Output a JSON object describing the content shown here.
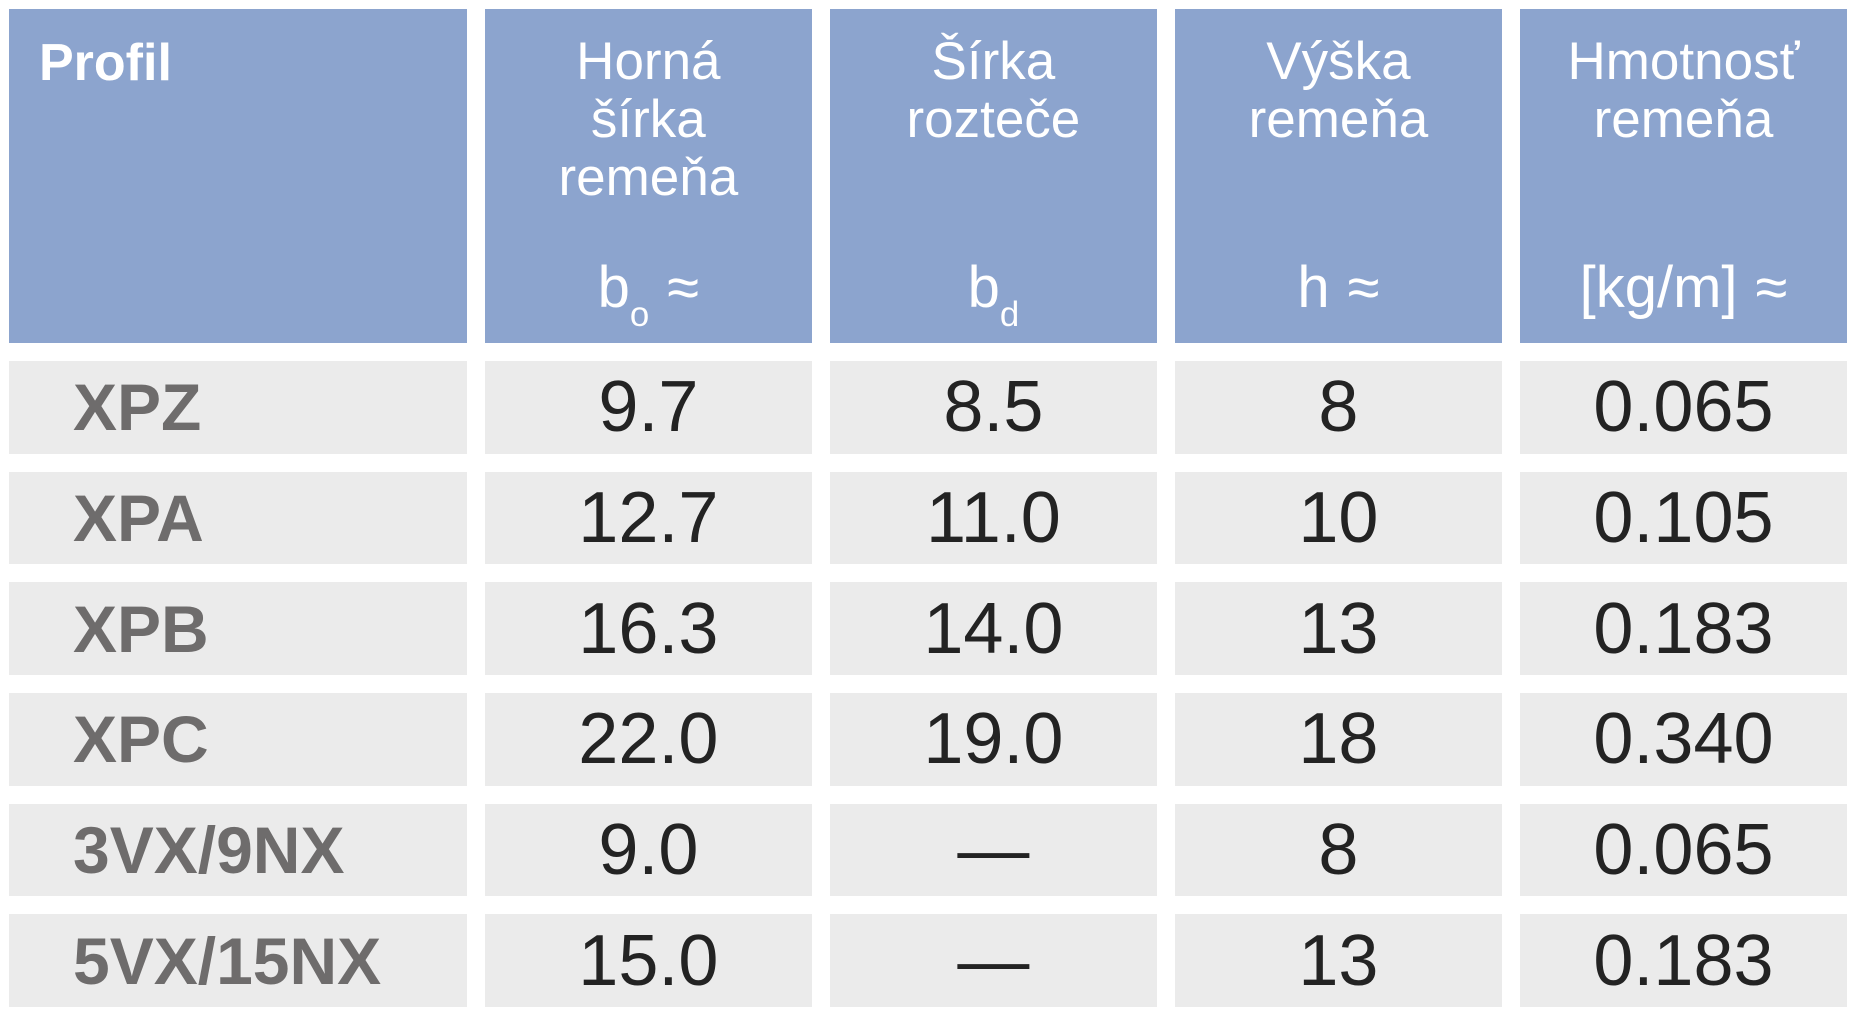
{
  "colors": {
    "header_bg": "#8ca4ce",
    "header_text": "#ffffff",
    "row_bg": "#ebebeb",
    "profile_text": "#6e6c6c",
    "value_text": "#232323",
    "page_bg": "#ffffff"
  },
  "table": {
    "columns": [
      {
        "title_lines": [
          "Profil"
        ],
        "symbol": {
          "base": "",
          "sub": "",
          "approx": ""
        }
      },
      {
        "title_lines": [
          "Horná",
          "šírka",
          "remeňa"
        ],
        "symbol": {
          "base": "b",
          "sub": "o",
          "approx": "≈"
        }
      },
      {
        "title_lines": [
          "Šírka",
          "rozteče"
        ],
        "symbol": {
          "base": "b",
          "sub": "d",
          "approx": ""
        }
      },
      {
        "title_lines": [
          "Výška",
          "remeňa"
        ],
        "symbol": {
          "base": "h",
          "sub": "",
          "approx": "≈"
        }
      },
      {
        "title_lines": [
          "Hmotnosť",
          "remeňa"
        ],
        "symbol": {
          "base": "[kg/m]",
          "sub": "",
          "approx": "≈"
        }
      }
    ],
    "rows": [
      {
        "profile": "XPZ",
        "values": [
          "9.7",
          "8.5",
          "8",
          "0.065"
        ]
      },
      {
        "profile": "XPA",
        "values": [
          "12.7",
          "11.0",
          "10",
          "0.105"
        ]
      },
      {
        "profile": "XPB",
        "values": [
          "16.3",
          "14.0",
          "13",
          "0.183"
        ]
      },
      {
        "profile": "XPC",
        "values": [
          "22.0",
          "19.0",
          "18",
          "0.340"
        ]
      },
      {
        "profile": "3VX/9NX",
        "values": [
          "9.0",
          "—",
          "8",
          "0.065"
        ]
      },
      {
        "profile": "5VX/15NX",
        "values": [
          "15.0",
          "—",
          "13",
          "0.183"
        ]
      }
    ]
  },
  "chart_data": {
    "type": "table",
    "columns": [
      "Profil",
      "Horná šírka remeňa bo ≈",
      "Šírka rozteče bd",
      "Výška remeňa h ≈",
      "Hmotnosť remeňa [kg/m] ≈"
    ],
    "rows": [
      [
        "XPZ",
        "9.7",
        "8.5",
        "8",
        "0.065"
      ],
      [
        "XPA",
        "12.7",
        "11.0",
        "10",
        "0.105"
      ],
      [
        "XPB",
        "16.3",
        "14.0",
        "13",
        "0.183"
      ],
      [
        "XPC",
        "22.0",
        "19.0",
        "18",
        "0.340"
      ],
      [
        "3VX/9NX",
        "9.0",
        "—",
        "8",
        "0.065"
      ],
      [
        "5VX/15NX",
        "15.0",
        "—",
        "13",
        "0.183"
      ]
    ]
  }
}
